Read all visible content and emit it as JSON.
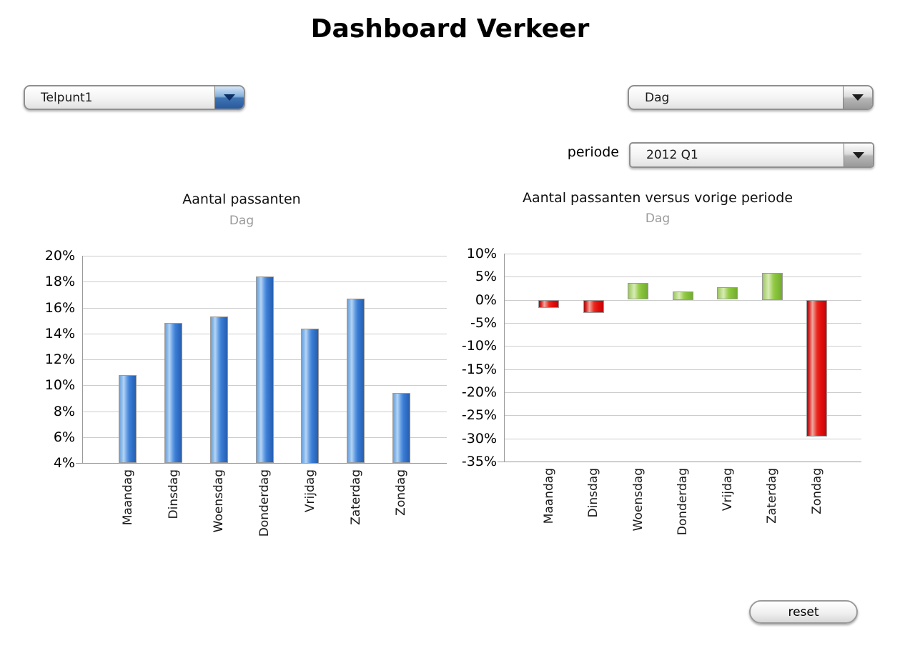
{
  "page": {
    "title": "Dashboard Verkeer"
  },
  "controls": {
    "telpunt": {
      "value": "Telpunt1"
    },
    "granularity": {
      "value": "Dag"
    },
    "periode_label": "periode",
    "periode": {
      "value": "2012 Q1"
    },
    "reset_label": "reset"
  },
  "colors": {
    "bar_blue": "#4886d8",
    "bar_green": "#8dc63f",
    "bar_red": "#e01515",
    "dropdown_button_blue": "#2c5c9e",
    "subtitle_gray": "#9a9a9a",
    "gridline": "#cccccc"
  },
  "chart_data": [
    {
      "type": "bar",
      "title": "Aantal passanten",
      "subtitle": "Dag",
      "categories": [
        "Maandag",
        "Dinsdag",
        "Woensdag",
        "Donderdag",
        "Vrijdag",
        "Zaterdag",
        "Zondag"
      ],
      "values": [
        10.8,
        14.8,
        15.3,
        18.4,
        14.4,
        16.7,
        9.4
      ],
      "unit": "%",
      "ylim": [
        4,
        20
      ],
      "ytick_step": 2,
      "baseline": 4,
      "grid": true,
      "legend": "none",
      "bar_color_positive": "blue",
      "bar_color_negative": "blue"
    },
    {
      "type": "bar",
      "title": "Aantal passanten versus vorige periode",
      "subtitle": "Dag",
      "categories": [
        "Maandag",
        "Dinsdag",
        "Woensdag",
        "Donderdag",
        "Vrijdag",
        "Zaterdag",
        "Zondag"
      ],
      "values": [
        -1.7,
        -2.8,
        3.6,
        1.8,
        2.7,
        5.8,
        -29.6
      ],
      "unit": "%",
      "ylim": [
        -35,
        10
      ],
      "ytick_step": 5,
      "baseline": 0,
      "grid": true,
      "legend": "none",
      "bar_color_positive": "green",
      "bar_color_negative": "red"
    }
  ]
}
